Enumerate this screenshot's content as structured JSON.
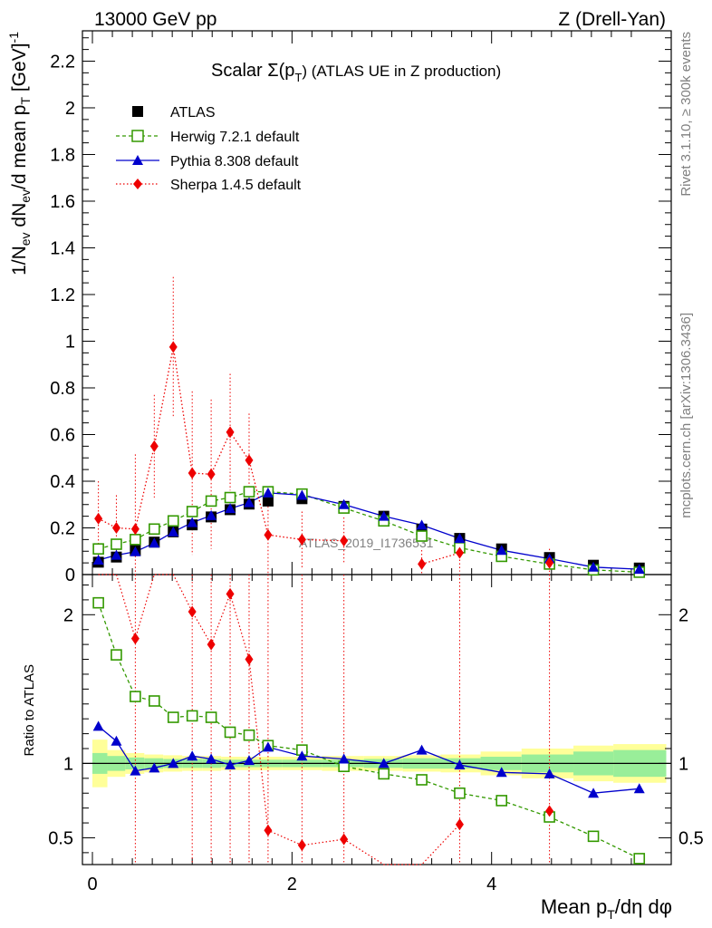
{
  "header": {
    "left": "13000 GeV pp",
    "right": "Z (Drell-Yan)"
  },
  "side": {
    "top": "Rivet 3.1.10, ≥ 300k events",
    "bottom": "mcplots.cern.ch [arXiv:1306.3436]"
  },
  "chart_data": {
    "type": "scatter",
    "title_prefix": "Scalar Σ(p",
    "title_sub": "T",
    "title_suffix": ") (ATLAS UE in Z production)",
    "watermark": "ATLAS_2019_I1736531",
    "xlabel": "Mean pₜ/dη dφ",
    "xlabel_parts": [
      "Mean p",
      "T",
      "/dη dφ"
    ],
    "ylabel_parts": [
      "1/N",
      "ev",
      " dN",
      "ev",
      "/d mean p",
      "T",
      " [GeV]",
      "-1"
    ],
    "ratio_ylabel": "Ratio to ATLAS",
    "xlim": [
      -0.1,
      5.8
    ],
    "ylim_main": [
      0,
      2.33
    ],
    "ylim_ratio": [
      0.32,
      2.27
    ],
    "xticks": [
      0,
      2,
      4
    ],
    "xtick_labels": [
      "0",
      "2",
      "4"
    ],
    "yticks_main": [
      0,
      0.2,
      0.4,
      0.6,
      0.8,
      1,
      1.2,
      1.4,
      1.6,
      1.8,
      2,
      2.2
    ],
    "ytick_labels_main": [
      "0",
      "0.2",
      "0.4",
      "0.6",
      "0.8",
      "1",
      "1.2",
      "1.4",
      "1.6",
      "1.8",
      "2",
      "2.2"
    ],
    "yticks_ratio": [
      0.5,
      1,
      2
    ],
    "ytick_labels_ratio": [
      "0.5",
      "1",
      "2"
    ],
    "x": [
      0.06,
      0.24,
      0.43,
      0.62,
      0.81,
      1.0,
      1.19,
      1.38,
      1.57,
      1.76,
      2.1,
      2.52,
      2.92,
      3.3,
      3.68,
      4.1,
      4.58,
      5.02,
      5.48
    ],
    "legend": [
      "ATLAS",
      "Herwig 7.2.1 default",
      "Pythia 8.308 default",
      "Sherpa 1.4.5 default"
    ],
    "series": [
      {
        "name": "ATLAS",
        "color": "#000000",
        "values": [
          0.053,
          0.075,
          0.103,
          0.139,
          0.183,
          0.213,
          0.247,
          0.278,
          0.302,
          0.315,
          0.325,
          0.292,
          0.25,
          0.195,
          0.155,
          0.11,
          0.073,
          0.04,
          0.028
        ]
      },
      {
        "name": "Herwig 7.2.1 default",
        "color": "#339900",
        "values": [
          0.11,
          0.13,
          0.15,
          0.195,
          0.23,
          0.27,
          0.315,
          0.33,
          0.355,
          0.355,
          0.345,
          0.285,
          0.23,
          0.165,
          0.115,
          0.078,
          0.045,
          0.02,
          0.01
        ]
      },
      {
        "name": "Pythia 8.308 default",
        "color": "#0000cc",
        "values": [
          0.062,
          0.083,
          0.098,
          0.135,
          0.183,
          0.223,
          0.253,
          0.283,
          0.308,
          0.35,
          0.34,
          0.3,
          0.25,
          0.212,
          0.155,
          0.104,
          0.068,
          0.032,
          0.023
        ]
      },
      {
        "name": "Sherpa 1.4.5 default",
        "color": "#ee0000",
        "values": [
          0.24,
          0.2,
          0.195,
          0.55,
          0.975,
          0.435,
          0.43,
          0.61,
          0.49,
          0.17,
          0.15,
          0.145,
          null,
          0.045,
          0.093,
          null,
          0.05,
          null,
          null
        ]
      }
    ],
    "sherpa_err_up": [
      0.16,
      0.14,
      0.32,
      0.22,
      0.3,
      0.35,
      0.32,
      0.25,
      0.2,
      0.2,
      0.12,
      0.1,
      null,
      0.06,
      0.08,
      null,
      0.06,
      null,
      null
    ],
    "ratio_series": [
      {
        "name": "Herwig 7.2.1 default",
        "values": [
          2.08,
          1.73,
          1.45,
          1.42,
          1.31,
          1.32,
          1.31,
          1.21,
          1.19,
          1.12,
          1.09,
          0.98,
          0.93,
          0.89,
          0.8,
          0.75,
          0.64,
          0.51,
          0.36
        ]
      },
      {
        "name": "Pythia 8.308 default",
        "values": [
          1.25,
          1.15,
          0.95,
          0.97,
          1.0,
          1.05,
          1.03,
          0.99,
          1.02,
          1.11,
          1.05,
          1.03,
          1.0,
          1.09,
          0.99,
          0.94,
          0.93,
          0.8,
          0.83
        ]
      },
      {
        "name": "Sherpa 1.4.5 default",
        "values": [
          null,
          null,
          1.84,
          null,
          null,
          2.02,
          1.8,
          2.14,
          1.7,
          0.55,
          0.45,
          0.49,
          null,
          null,
          0.59,
          null,
          0.68,
          null,
          null
        ]
      }
    ],
    "ratio_band": {
      "edges": [
        0.0,
        0.15,
        0.33,
        0.52,
        0.71,
        0.9,
        1.1,
        1.29,
        1.48,
        1.67,
        1.9,
        2.3,
        2.72,
        3.11,
        3.49,
        3.89,
        4.3,
        4.82,
        5.22,
        5.75
      ],
      "inner": [
        0.07,
        0.05,
        0.04,
        0.035,
        0.03,
        0.03,
        0.03,
        0.025,
        0.025,
        0.025,
        0.025,
        0.025,
        0.03,
        0.035,
        0.035,
        0.045,
        0.06,
        0.08,
        0.09
      ],
      "outer": [
        0.16,
        0.09,
        0.07,
        0.06,
        0.055,
        0.05,
        0.05,
        0.045,
        0.045,
        0.045,
        0.045,
        0.05,
        0.05,
        0.055,
        0.06,
        0.08,
        0.1,
        0.12,
        0.13
      ]
    }
  }
}
